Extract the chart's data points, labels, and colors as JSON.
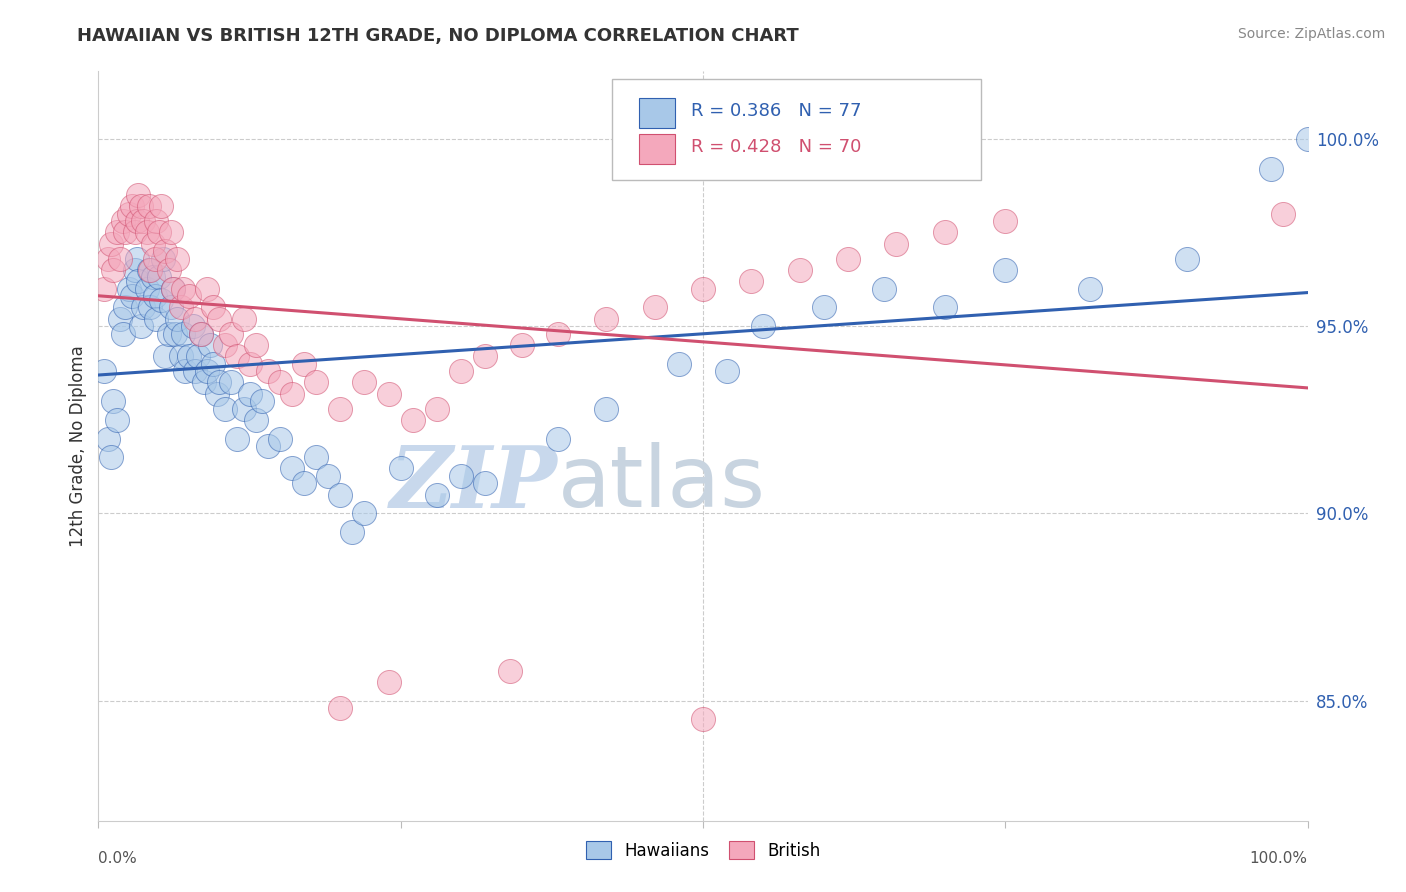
{
  "title": "HAWAIIAN VS BRITISH 12TH GRADE, NO DIPLOMA CORRELATION CHART",
  "source": "Source: ZipAtlas.com",
  "ylabel": "12th Grade, No Diploma",
  "yticks": [
    0.85,
    0.9,
    0.95,
    1.0
  ],
  "ytick_labels": [
    "85.0%",
    "90.0%",
    "95.0%",
    "100.0%"
  ],
  "xlim": [
    0.0,
    1.0
  ],
  "ylim": [
    0.818,
    1.018
  ],
  "r_hawaiian": 0.386,
  "n_hawaiian": 77,
  "r_british": 0.428,
  "n_british": 70,
  "color_hawaiian": "#A8C8E8",
  "color_british": "#F4A8BC",
  "color_line_hawaiian": "#3060B0",
  "color_line_british": "#D05070",
  "watermark_zip": "ZIP",
  "watermark_atlas": "atlas",
  "watermark_color": "#C8D8EC",
  "hawaiian_x": [
    0.005,
    0.008,
    0.01,
    0.012,
    0.015,
    0.018,
    0.02,
    0.022,
    0.025,
    0.028,
    0.03,
    0.032,
    0.033,
    0.035,
    0.037,
    0.04,
    0.042,
    0.043,
    0.045,
    0.047,
    0.048,
    0.05,
    0.052,
    0.053,
    0.055,
    0.058,
    0.06,
    0.062,
    0.063,
    0.065,
    0.068,
    0.07,
    0.072,
    0.075,
    0.078,
    0.08,
    0.082,
    0.085,
    0.087,
    0.09,
    0.092,
    0.095,
    0.098,
    0.1,
    0.105,
    0.11,
    0.115,
    0.12,
    0.125,
    0.13,
    0.135,
    0.14,
    0.15,
    0.16,
    0.17,
    0.18,
    0.19,
    0.2,
    0.21,
    0.22,
    0.25,
    0.28,
    0.3,
    0.32,
    0.38,
    0.42,
    0.48,
    0.52,
    0.55,
    0.6,
    0.65,
    0.7,
    0.75,
    0.82,
    0.9,
    0.97,
    1.0
  ],
  "hawaiian_y": [
    0.938,
    0.92,
    0.915,
    0.93,
    0.925,
    0.952,
    0.948,
    0.955,
    0.96,
    0.958,
    0.965,
    0.968,
    0.962,
    0.95,
    0.955,
    0.96,
    0.965,
    0.955,
    0.963,
    0.958,
    0.952,
    0.963,
    0.957,
    0.968,
    0.942,
    0.948,
    0.955,
    0.96,
    0.948,
    0.952,
    0.942,
    0.948,
    0.938,
    0.942,
    0.95,
    0.938,
    0.942,
    0.948,
    0.935,
    0.938,
    0.945,
    0.94,
    0.932,
    0.935,
    0.928,
    0.935,
    0.92,
    0.928,
    0.932,
    0.925,
    0.93,
    0.918,
    0.92,
    0.912,
    0.908,
    0.915,
    0.91,
    0.905,
    0.895,
    0.9,
    0.912,
    0.905,
    0.91,
    0.908,
    0.92,
    0.928,
    0.94,
    0.938,
    0.95,
    0.955,
    0.96,
    0.955,
    0.965,
    0.96,
    0.968,
    0.992,
    1.0
  ],
  "british_x": [
    0.005,
    0.008,
    0.01,
    0.012,
    0.015,
    0.018,
    0.02,
    0.022,
    0.025,
    0.028,
    0.03,
    0.032,
    0.033,
    0.035,
    0.037,
    0.04,
    0.042,
    0.043,
    0.045,
    0.047,
    0.048,
    0.05,
    0.052,
    0.055,
    0.058,
    0.06,
    0.062,
    0.065,
    0.068,
    0.07,
    0.075,
    0.08,
    0.085,
    0.09,
    0.095,
    0.1,
    0.105,
    0.11,
    0.115,
    0.12,
    0.125,
    0.13,
    0.14,
    0.15,
    0.16,
    0.17,
    0.18,
    0.2,
    0.22,
    0.24,
    0.26,
    0.28,
    0.3,
    0.32,
    0.35,
    0.38,
    0.42,
    0.46,
    0.5,
    0.54,
    0.58,
    0.62,
    0.66,
    0.7,
    0.75,
    0.34,
    0.24,
    0.2,
    0.5,
    0.98
  ],
  "british_y": [
    0.96,
    0.968,
    0.972,
    0.965,
    0.975,
    0.968,
    0.978,
    0.975,
    0.98,
    0.982,
    0.975,
    0.978,
    0.985,
    0.982,
    0.978,
    0.975,
    0.982,
    0.965,
    0.972,
    0.968,
    0.978,
    0.975,
    0.982,
    0.97,
    0.965,
    0.975,
    0.96,
    0.968,
    0.955,
    0.96,
    0.958,
    0.952,
    0.948,
    0.96,
    0.955,
    0.952,
    0.945,
    0.948,
    0.942,
    0.952,
    0.94,
    0.945,
    0.938,
    0.935,
    0.932,
    0.94,
    0.935,
    0.928,
    0.935,
    0.932,
    0.925,
    0.928,
    0.938,
    0.942,
    0.945,
    0.948,
    0.952,
    0.955,
    0.96,
    0.962,
    0.965,
    0.968,
    0.972,
    0.975,
    0.978,
    0.858,
    0.855,
    0.848,
    0.845,
    0.98
  ]
}
